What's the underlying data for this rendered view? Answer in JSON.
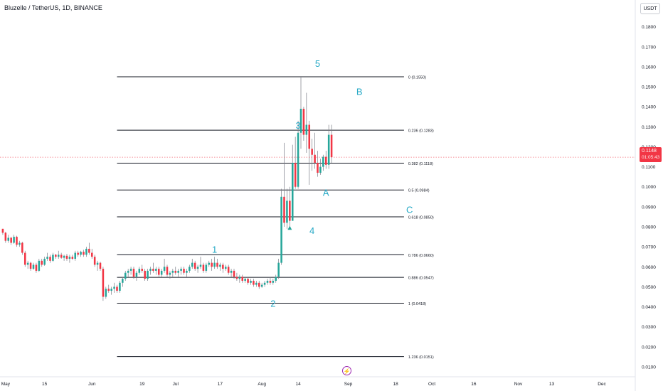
{
  "header": {
    "symbol_title": "Bluzelle / TetherUS, 1D, BINANCE",
    "currency": "USDT"
  },
  "last_price": {
    "value": "0.1148",
    "countdown": "01:05:43"
  },
  "colors": {
    "up": "#26a69a",
    "down": "#f23645",
    "wave_label": "#26a9c6",
    "fib_line": "#131722"
  },
  "icons": {
    "event_marker": "lightning-icon"
  },
  "chart_data": {
    "type": "candlestick",
    "y_axis": {
      "ticks": [
        "0.1800",
        "0.1700",
        "0.1600",
        "0.1500",
        "0.1400",
        "0.1300",
        "0.1200",
        "0.1100",
        "0.1000",
        "0.0900",
        "0.0800",
        "0.0700",
        "0.0600",
        "0.0500",
        "0.0400",
        "0.0300",
        "0.0200",
        "0.0100"
      ],
      "ylim": [
        0.005,
        0.187
      ]
    },
    "x_axis": {
      "ticks": [
        {
          "label": "May",
          "day": 0
        },
        {
          "label": "15",
          "day": 14
        },
        {
          "label": "Jun",
          "day": 31
        },
        {
          "label": "19",
          "day": 49
        },
        {
          "label": "Jul",
          "day": 61
        },
        {
          "label": "17",
          "day": 77
        },
        {
          "label": "Aug",
          "day": 92
        },
        {
          "label": "14",
          "day": 105
        },
        {
          "label": "Sep",
          "day": 123
        },
        {
          "label": "18",
          "day": 140
        },
        {
          "label": "Oct",
          "day": 153
        },
        {
          "label": "16",
          "day": 168
        },
        {
          "label": "Nov",
          "day": 184
        },
        {
          "label": "13",
          "day": 196
        },
        {
          "label": "Dec",
          "day": 214
        }
      ],
      "xlim": [
        -2,
        226
      ]
    },
    "fib_levels": [
      {
        "ratio": "0",
        "price": 0.155,
        "label": "0 (0.1550)"
      },
      {
        "ratio": "0.236",
        "price": 0.1283,
        "label": "0.236 (0.1283)"
      },
      {
        "ratio": "0.382",
        "price": 0.1118,
        "label": "0.382 (0.1118)"
      },
      {
        "ratio": "0.5",
        "price": 0.0984,
        "label": "0.5 (0.0984)"
      },
      {
        "ratio": "0.618",
        "price": 0.085,
        "label": "0.618 (0.0850)"
      },
      {
        "ratio": "0.786",
        "price": 0.066,
        "label": "0.786 (0.0660)"
      },
      {
        "ratio": "0.886",
        "price": 0.0547,
        "label": "0.886 (0.0547)"
      },
      {
        "ratio": "1",
        "price": 0.0418,
        "label": "1 (0.0418)"
      },
      {
        "ratio": "1.236",
        "price": 0.0151,
        "label": "1.236 (0.0151)"
      }
    ],
    "fib_range_days": [
      40,
      143
    ],
    "wave_labels": [
      {
        "text": "1",
        "day": 75,
        "price": 0.067
      },
      {
        "text": "2",
        "day": 96,
        "price": 0.04
      },
      {
        "text": "3",
        "day": 105,
        "price": 0.129
      },
      {
        "text": "4",
        "day": 110,
        "price": 0.0765
      },
      {
        "text": "5",
        "day": 112,
        "price": 0.16
      },
      {
        "text": "A",
        "day": 115,
        "price": 0.0955
      },
      {
        "text": "B",
        "day": 127,
        "price": 0.146
      },
      {
        "text": "C",
        "day": 145,
        "price": 0.087
      }
    ],
    "last_price_line": 0.1148,
    "candles": [
      [
        -1,
        0.079,
        0.079,
        0.076,
        0.077
      ],
      [
        0,
        0.077,
        0.0775,
        0.072,
        0.073
      ],
      [
        1,
        0.073,
        0.076,
        0.072,
        0.0745
      ],
      [
        2,
        0.0745,
        0.075,
        0.071,
        0.072
      ],
      [
        3,
        0.072,
        0.076,
        0.0715,
        0.075
      ],
      [
        4,
        0.075,
        0.0755,
        0.07,
        0.071
      ],
      [
        5,
        0.071,
        0.073,
        0.07,
        0.072
      ],
      [
        6,
        0.072,
        0.0725,
        0.066,
        0.067
      ],
      [
        7,
        0.067,
        0.068,
        0.06,
        0.061
      ],
      [
        8,
        0.061,
        0.063,
        0.059,
        0.062
      ],
      [
        9,
        0.062,
        0.0625,
        0.058,
        0.059
      ],
      [
        10,
        0.059,
        0.062,
        0.0585,
        0.061
      ],
      [
        11,
        0.061,
        0.062,
        0.057,
        0.058
      ],
      [
        12,
        0.058,
        0.064,
        0.0575,
        0.063
      ],
      [
        13,
        0.063,
        0.064,
        0.06,
        0.061
      ],
      [
        14,
        0.061,
        0.065,
        0.0605,
        0.064
      ],
      [
        15,
        0.064,
        0.067,
        0.063,
        0.065
      ],
      [
        16,
        0.065,
        0.066,
        0.062,
        0.063
      ],
      [
        17,
        0.063,
        0.067,
        0.0625,
        0.066
      ],
      [
        18,
        0.066,
        0.0665,
        0.064,
        0.065
      ],
      [
        19,
        0.065,
        0.068,
        0.064,
        0.066
      ],
      [
        20,
        0.066,
        0.067,
        0.064,
        0.0645
      ],
      [
        21,
        0.0645,
        0.066,
        0.063,
        0.0655
      ],
      [
        22,
        0.0655,
        0.0665,
        0.063,
        0.064
      ],
      [
        23,
        0.064,
        0.066,
        0.062,
        0.065
      ],
      [
        24,
        0.065,
        0.066,
        0.0635,
        0.064
      ],
      [
        25,
        0.064,
        0.068,
        0.063,
        0.067
      ],
      [
        26,
        0.067,
        0.068,
        0.065,
        0.066
      ],
      [
        27,
        0.066,
        0.068,
        0.065,
        0.0675
      ],
      [
        28,
        0.0675,
        0.0685,
        0.065,
        0.066
      ],
      [
        29,
        0.066,
        0.07,
        0.065,
        0.069
      ],
      [
        30,
        0.069,
        0.072,
        0.066,
        0.067
      ],
      [
        31,
        0.067,
        0.069,
        0.064,
        0.065
      ],
      [
        32,
        0.065,
        0.066,
        0.06,
        0.061
      ],
      [
        33,
        0.061,
        0.063,
        0.058,
        0.062
      ],
      [
        34,
        0.062,
        0.0625,
        0.058,
        0.059
      ],
      [
        35,
        0.059,
        0.06,
        0.043,
        0.045
      ],
      [
        36,
        0.045,
        0.05,
        0.044,
        0.049
      ],
      [
        37,
        0.049,
        0.051,
        0.047,
        0.048
      ],
      [
        38,
        0.048,
        0.05,
        0.046,
        0.049
      ],
      [
        39,
        0.049,
        0.052,
        0.047,
        0.05
      ],
      [
        40,
        0.05,
        0.051,
        0.047,
        0.048
      ],
      [
        41,
        0.048,
        0.053,
        0.047,
        0.052
      ],
      [
        42,
        0.052,
        0.055,
        0.05,
        0.054
      ],
      [
        43,
        0.054,
        0.058,
        0.053,
        0.057
      ],
      [
        44,
        0.057,
        0.059,
        0.055,
        0.058
      ],
      [
        45,
        0.058,
        0.06,
        0.056,
        0.059
      ],
      [
        46,
        0.059,
        0.06,
        0.054,
        0.055
      ],
      [
        47,
        0.055,
        0.058,
        0.053,
        0.057
      ],
      [
        48,
        0.057,
        0.06,
        0.056,
        0.059
      ],
      [
        49,
        0.059,
        0.061,
        0.057,
        0.058
      ],
      [
        50,
        0.058,
        0.059,
        0.053,
        0.054
      ],
      [
        51,
        0.054,
        0.059,
        0.053,
        0.058
      ],
      [
        52,
        0.058,
        0.06,
        0.056,
        0.059
      ],
      [
        53,
        0.059,
        0.062,
        0.057,
        0.058
      ],
      [
        54,
        0.058,
        0.06,
        0.056,
        0.059
      ],
      [
        55,
        0.059,
        0.06,
        0.055,
        0.056
      ],
      [
        56,
        0.056,
        0.059,
        0.055,
        0.058
      ],
      [
        57,
        0.058,
        0.064,
        0.057,
        0.06
      ],
      [
        58,
        0.06,
        0.061,
        0.055,
        0.056
      ],
      [
        59,
        0.056,
        0.058,
        0.054,
        0.057
      ],
      [
        60,
        0.057,
        0.059,
        0.055,
        0.058
      ],
      [
        61,
        0.058,
        0.06,
        0.056,
        0.057
      ],
      [
        62,
        0.057,
        0.059,
        0.055,
        0.058
      ],
      [
        63,
        0.058,
        0.06,
        0.056,
        0.059
      ],
      [
        64,
        0.059,
        0.06,
        0.056,
        0.057
      ],
      [
        65,
        0.057,
        0.059,
        0.055,
        0.058
      ],
      [
        66,
        0.058,
        0.061,
        0.057,
        0.06
      ],
      [
        67,
        0.06,
        0.064,
        0.059,
        0.062
      ],
      [
        68,
        0.062,
        0.063,
        0.058,
        0.059
      ],
      [
        69,
        0.059,
        0.061,
        0.057,
        0.06
      ],
      [
        70,
        0.06,
        0.065,
        0.059,
        0.061
      ],
      [
        71,
        0.061,
        0.062,
        0.057,
        0.058
      ],
      [
        72,
        0.058,
        0.062,
        0.057,
        0.061
      ],
      [
        73,
        0.061,
        0.063,
        0.06,
        0.062
      ],
      [
        74,
        0.062,
        0.064,
        0.058,
        0.06
      ],
      [
        75,
        0.06,
        0.065,
        0.059,
        0.062
      ],
      [
        76,
        0.062,
        0.064,
        0.059,
        0.06
      ],
      [
        77,
        0.06,
        0.062,
        0.058,
        0.061
      ],
      [
        78,
        0.061,
        0.062,
        0.057,
        0.059
      ],
      [
        79,
        0.059,
        0.061,
        0.058,
        0.06
      ],
      [
        80,
        0.06,
        0.061,
        0.056,
        0.057
      ],
      [
        81,
        0.057,
        0.059,
        0.055,
        0.058
      ],
      [
        82,
        0.058,
        0.059,
        0.054,
        0.055
      ],
      [
        83,
        0.055,
        0.057,
        0.053,
        0.054
      ],
      [
        84,
        0.054,
        0.056,
        0.052,
        0.055
      ],
      [
        85,
        0.055,
        0.056,
        0.052,
        0.053
      ],
      [
        86,
        0.053,
        0.055,
        0.052,
        0.054
      ],
      [
        87,
        0.054,
        0.055,
        0.051,
        0.052
      ],
      [
        88,
        0.052,
        0.054,
        0.051,
        0.053
      ],
      [
        89,
        0.053,
        0.054,
        0.05,
        0.051
      ],
      [
        90,
        0.051,
        0.053,
        0.05,
        0.052
      ],
      [
        91,
        0.052,
        0.053,
        0.049,
        0.05
      ],
      [
        92,
        0.05,
        0.052,
        0.0495,
        0.051
      ],
      [
        93,
        0.051,
        0.053,
        0.05,
        0.052
      ],
      [
        94,
        0.052,
        0.054,
        0.051,
        0.053
      ],
      [
        95,
        0.053,
        0.055,
        0.051,
        0.052
      ],
      [
        96,
        0.052,
        0.054,
        0.051,
        0.053
      ],
      [
        97,
        0.053,
        0.056,
        0.052,
        0.055
      ],
      [
        98,
        0.055,
        0.064,
        0.054,
        0.062
      ],
      [
        99,
        0.062,
        0.099,
        0.061,
        0.095
      ],
      [
        100,
        0.095,
        0.122,
        0.08,
        0.082
      ],
      [
        101,
        0.082,
        0.099,
        0.079,
        0.093
      ],
      [
        102,
        0.093,
        0.1,
        0.08,
        0.083
      ],
      [
        103,
        0.083,
        0.121,
        0.083,
        0.112
      ],
      [
        104,
        0.112,
        0.125,
        0.099,
        0.1
      ],
      [
        105,
        0.1,
        0.133,
        0.099,
        0.127
      ],
      [
        106,
        0.127,
        0.155,
        0.119,
        0.139
      ],
      [
        107,
        0.139,
        0.14,
        0.123,
        0.126
      ],
      [
        108,
        0.126,
        0.147,
        0.117,
        0.131
      ],
      [
        109,
        0.131,
        0.133,
        0.101,
        0.119
      ],
      [
        110,
        0.119,
        0.124,
        0.108,
        0.116
      ],
      [
        111,
        0.116,
        0.127,
        0.109,
        0.112
      ],
      [
        112,
        0.112,
        0.118,
        0.105,
        0.107
      ],
      [
        113,
        0.107,
        0.114,
        0.106,
        0.11
      ],
      [
        114,
        0.11,
        0.116,
        0.108,
        0.115
      ],
      [
        115,
        0.115,
        0.118,
        0.109,
        0.111
      ],
      [
        116,
        0.111,
        0.131,
        0.109,
        0.126
      ],
      [
        117,
        0.126,
        0.131,
        0.112,
        0.1148
      ]
    ]
  }
}
